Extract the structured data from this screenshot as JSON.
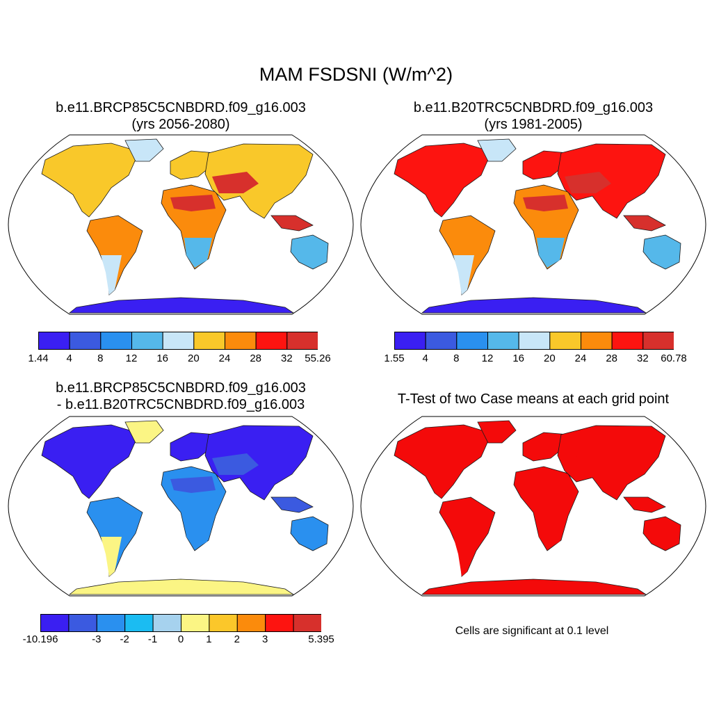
{
  "title": "MAM FSDSNI (W/m^2)",
  "panels": [
    {
      "title_line1": "b.e11.BRCP85C5CNBDRD.f09_g16.003",
      "title_line2": "(yrs 2056-2080)",
      "colorbar": {
        "colors": [
          "#3a1ff2",
          "#3b5ae0",
          "#2a90ef",
          "#55b8ea",
          "#c8e6f8",
          "#f9c82a",
          "#fb8b0c",
          "#fd1410",
          "#d7302c"
        ],
        "labels": [
          "1.44",
          "4",
          "8",
          "12",
          "16",
          "20",
          "24",
          "28",
          "32",
          "55.26"
        ]
      }
    },
    {
      "title_line1": "b.e11.B20TRC5CNBDRD.f09_g16.003",
      "title_line2": "(yrs 1981-2005)",
      "colorbar": {
        "colors": [
          "#3a1ff2",
          "#3b5ae0",
          "#2a90ef",
          "#55b8ea",
          "#c8e6f8",
          "#f9c82a",
          "#fb8b0c",
          "#fd1410",
          "#d7302c"
        ],
        "labels": [
          "1.55",
          "4",
          "8",
          "12",
          "16",
          "20",
          "24",
          "28",
          "32",
          "60.78"
        ]
      }
    },
    {
      "title_line1": "b.e11.BRCP85C5CNBDRD.f09_g16.003",
      "title_line2": "- b.e11.B20TRC5CNBDRD.f09_g16.003",
      "colorbar": {
        "colors": [
          "#3a1ff2",
          "#3b5ae0",
          "#2a90ef",
          "#1bbcf2",
          "#a6d2ee",
          "#fbf584",
          "#fbc72a",
          "#fb8b0c",
          "#fd1410",
          "#d7302c"
        ],
        "labels": [
          "-10.196",
          "",
          "-3",
          "-2",
          "-1",
          "0",
          "1",
          "2",
          "3",
          "",
          "5.395"
        ]
      }
    },
    {
      "title_line1": "T-Test of two Case means at each grid point",
      "note": "Cells are significant at 0.1 level",
      "significance_color": "#f40a0a"
    }
  ],
  "map_colors": {
    "p1": {
      "north": "#f9c82a",
      "mid": "#fb8b0c",
      "hot": "#d7302c",
      "cool": "#55b8ea",
      "pale": "#c8e6f8",
      "ice": "#3a1ff2"
    },
    "p2": {
      "north": "#fd1410",
      "mid": "#fb8b0c",
      "hot": "#d7302c",
      "cool": "#55b8ea",
      "pale": "#c8e6f8",
      "ice": "#3a1ff2"
    },
    "p3": {
      "north": "#3a1ff2",
      "mid": "#2a90ef",
      "hot": "#3b5ae0",
      "cool": "#2a90ef",
      "pale": "#fbf584",
      "ice": "#fbf584"
    },
    "p4": {
      "north": "#f40a0a",
      "mid": "#f40a0a",
      "hot": "#f40a0a",
      "cool": "#f40a0a",
      "pale": "#f40a0a",
      "ice": "#f40a0a"
    }
  }
}
